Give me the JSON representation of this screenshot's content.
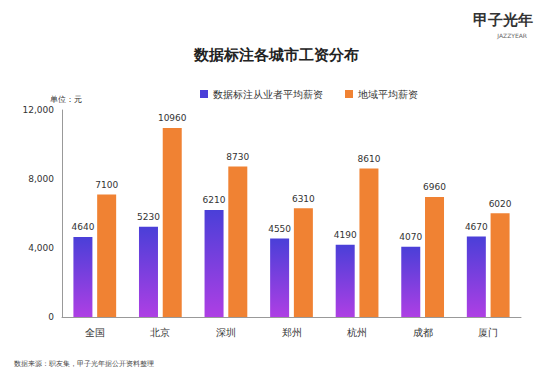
{
  "chart_data": {
    "type": "bar",
    "title": "数据标注各城市工资分布",
    "unit_label": "单位：元",
    "source": "数据来源：职友集，甲子光年据公开资料整理",
    "brand": "甲子光年",
    "brand_en": "JAZZYEAR",
    "categories": [
      "全国",
      "北京",
      "深圳",
      "郑州",
      "杭州",
      "成都",
      "厦门"
    ],
    "series": [
      {
        "name": "数据标注从业者平均薪资",
        "color": "#4a3fd8",
        "values": [
          4640,
          5230,
          6210,
          4550,
          4190,
          4070,
          4670
        ]
      },
      {
        "name": "地域平均薪资",
        "color": "#f08233",
        "values": [
          7100,
          10960,
          8730,
          6310,
          8610,
          6960,
          6020
        ]
      }
    ],
    "ylim": [
      0,
      12000
    ],
    "yticks": [
      0,
      4000,
      8000,
      12000
    ],
    "grid": false,
    "legend": "top",
    "data_labels": true
  }
}
